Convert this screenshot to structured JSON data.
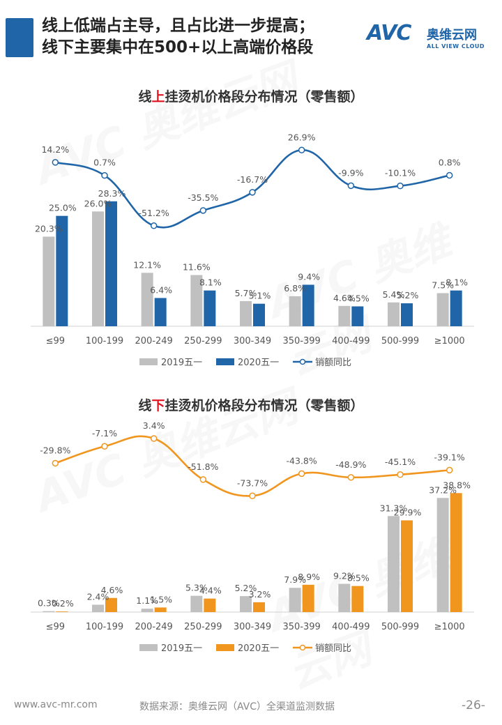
{
  "header": {
    "title_line1": "线上低端占主导，且占比进一步提高；",
    "title_line2": "线下主要集中在500+以上高端价格段",
    "logo_text": "AVC",
    "logo_cn": "奥维云网",
    "logo_en": "ALL VIEW CLOUD"
  },
  "watermark": {
    "text": "AVC 奥维云网",
    "sub": "ALL VIEW CLOUD"
  },
  "colors": {
    "gray": "#c0c0c0",
    "blue": "#1f65a8",
    "orange": "#f0961e",
    "accent_red": "#e0121e"
  },
  "chart_data": [
    {
      "type": "bar",
      "title_prefix": "线",
      "title_accent": "上",
      "title_suffix": "挂烫机价格段分布情况（零售额）",
      "categories": [
        "≤99",
        "100-199",
        "200-249",
        "250-299",
        "300-349",
        "350-399",
        "400-499",
        "500-999",
        "≥1000"
      ],
      "series": [
        {
          "name": "2019五一",
          "type": "bar",
          "values": [
            20.3,
            26.0,
            12.1,
            11.6,
            5.7,
            6.8,
            4.6,
            5.4,
            7.5
          ],
          "labels": [
            "20.3%",
            "26.0%",
            "12.1%",
            "11.6%",
            "5.7%",
            "6.8%",
            "4.6%",
            "5.4%",
            "7.5%"
          ]
        },
        {
          "name": "2020五一",
          "type": "bar",
          "values": [
            25.0,
            28.3,
            6.4,
            8.1,
            5.1,
            9.4,
            4.5,
            5.2,
            8.1
          ],
          "labels": [
            "25.0%",
            "28.3%",
            "6.4%",
            "8.1%",
            "5.1%",
            "9.4%",
            "4.5%",
            "5.2%",
            "8.1%"
          ]
        },
        {
          "name": "销额同比",
          "type": "line",
          "values": [
            14.2,
            0.7,
            -51.2,
            -35.5,
            -16.7,
            26.9,
            -9.9,
            -10.1,
            0.8
          ],
          "labels": [
            "14.2%",
            "0.7%",
            "-51.2%",
            "-35.5%",
            "-16.7%",
            "26.9%",
            "-9.9%",
            "-10.1%",
            "0.8%"
          ]
        }
      ],
      "bar_ylim": [
        0,
        30
      ],
      "line_ylim": [
        -60,
        35
      ]
    },
    {
      "type": "bar",
      "title_prefix": "线",
      "title_accent": "下",
      "title_suffix": "挂烫机价格段分布情况（零售额）",
      "categories": [
        "≤99",
        "100-199",
        "200-249",
        "250-299",
        "300-349",
        "350-399",
        "400-499",
        "500-999",
        "≥1000"
      ],
      "series": [
        {
          "name": "2019五一",
          "type": "bar",
          "values": [
            0.3,
            2.4,
            1.1,
            5.3,
            5.2,
            7.9,
            9.2,
            31.3,
            37.2
          ],
          "labels": [
            "0.3%",
            "2.4%",
            "1.1%",
            "5.3%",
            "5.2%",
            "7.9%",
            "9.2%",
            "31.3%",
            "37.2%"
          ]
        },
        {
          "name": "2020五一",
          "type": "bar",
          "values": [
            0.2,
            4.6,
            1.5,
            4.4,
            3.2,
            8.9,
            8.5,
            29.9,
            38.8
          ],
          "labels": [
            "0.2%",
            "4.6%",
            "1.5%",
            "4.4%",
            "3.2%",
            "8.9%",
            "8.5%",
            "29.9%",
            "38.8%"
          ]
        },
        {
          "name": "销额同比",
          "type": "line",
          "values": [
            -29.8,
            -7.1,
            3.4,
            -51.8,
            -73.7,
            -43.8,
            -48.9,
            -45.1,
            -39.1
          ],
          "labels": [
            "-29.8%",
            "-7.1%",
            "3.4%",
            "-51.8%",
            "-73.7%",
            "-43.8%",
            "-48.9%",
            "-45.1%",
            "-39.1%"
          ]
        }
      ],
      "bar_ylim": [
        0,
        45
      ],
      "line_ylim": [
        -80,
        10
      ]
    }
  ],
  "footer": {
    "website": "www.avc-mr.com",
    "source": "数据来源：奥维云网（AVC）全渠道监测数据",
    "page_number": "-26-"
  }
}
